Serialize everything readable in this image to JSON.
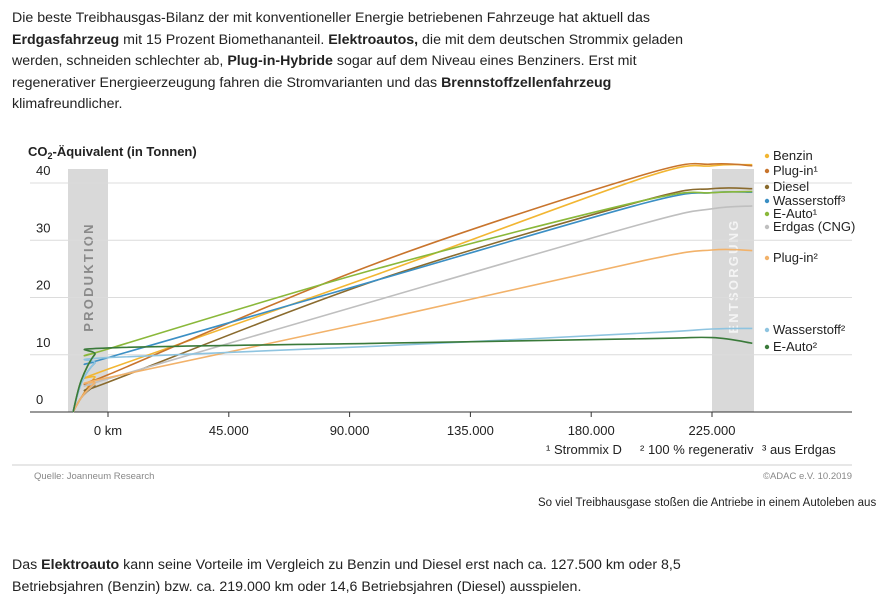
{
  "intro": {
    "p1": "Die beste Treibhausgas-Bilanz der mit konventioneller Energie betriebenen Fahrzeuge hat aktuell das ",
    "b1": "Erdgasfahrzeug",
    "p2": " mit 15 Prozent Biomethananteil. ",
    "b2": "Elektroautos,",
    "p3": " die mit dem deutschen Strommix geladen werden, schneiden schlechter ab, ",
    "b3": "Plug-in-Hybride",
    "p4": " sogar auf dem Niveau eines Benziners. Erst mit regenerativer Energieerzeugung fahren die Stromvarianten und das ",
    "b4": "Brennstoffzellenfahrzeug",
    "p5": " klimafreundlicher."
  },
  "chart_data": {
    "type": "line",
    "ylabel_prefix": "CO",
    "ylabel_sub": "2",
    "ylabel_suffix": "-Äquivalent (in Tonnen)",
    "ylim": [
      0,
      45
    ],
    "yticks": [
      "0",
      "10",
      "20",
      "30",
      "40"
    ],
    "xlim": [
      -25000,
      260000
    ],
    "xticks": [
      {
        "value": 0,
        "label": "0 km"
      },
      {
        "value": 45000,
        "label": "45.000"
      },
      {
        "value": 90000,
        "label": "90.000"
      },
      {
        "value": 135000,
        "label": "135.000"
      },
      {
        "value": 180000,
        "label": "180.000"
      },
      {
        "value": 225000,
        "label": "225.000"
      }
    ],
    "band_production": "PRODUKTION",
    "band_disposal": "ENTSORGUNG",
    "grid": true,
    "series": [
      {
        "name": "Benzin",
        "color": "#f2b632",
        "points": [
          [
            -13000,
            0
          ],
          [
            -10000,
            2.5
          ],
          [
            -5000,
            6.0
          ],
          [
            0,
            7.5
          ],
          [
            100000,
            24.0
          ],
          [
            200000,
            41.0
          ],
          [
            225000,
            43.0
          ],
          [
            240000,
            43.2
          ]
        ]
      },
      {
        "name": "Plug-in¹",
        "color": "#c8742c",
        "points": [
          [
            -13000,
            0
          ],
          [
            -10000,
            2.5
          ],
          [
            -5000,
            5.5
          ],
          [
            0,
            6.5
          ],
          [
            100000,
            26.0
          ],
          [
            200000,
            41.5
          ],
          [
            225000,
            43.3
          ],
          [
            240000,
            43.0
          ]
        ]
      },
      {
        "name": "Diesel",
        "color": "#8a6b2e",
        "points": [
          [
            -13000,
            0
          ],
          [
            -10000,
            2.5
          ],
          [
            -5000,
            4.5
          ],
          [
            0,
            5.2
          ],
          [
            100000,
            23.0
          ],
          [
            200000,
            37.0
          ],
          [
            225000,
            39.0
          ],
          [
            240000,
            39.0
          ]
        ]
      },
      {
        "name": "Wasserstoff³",
        "color": "#3b8fc4",
        "points": [
          [
            -13000,
            0
          ],
          [
            -10000,
            5.0
          ],
          [
            -5000,
            8.5
          ],
          [
            0,
            9.5
          ],
          [
            100000,
            23.0
          ],
          [
            200000,
            36.5
          ],
          [
            225000,
            38.3
          ],
          [
            240000,
            38.4
          ]
        ]
      },
      {
        "name": "E-Auto¹",
        "color": "#8ab83a",
        "points": [
          [
            -13000,
            0
          ],
          [
            -10000,
            5.5
          ],
          [
            -5000,
            10.0
          ],
          [
            0,
            11.0
          ],
          [
            100000,
            25.0
          ],
          [
            200000,
            37.0
          ],
          [
            225000,
            38.3
          ],
          [
            240000,
            38.5
          ]
        ]
      },
      {
        "name": "Erdgas (CNG)",
        "color": "#bfbfbf",
        "points": [
          [
            -13000,
            0
          ],
          [
            -10000,
            2.5
          ],
          [
            -5000,
            4.8
          ],
          [
            0,
            5.8
          ],
          [
            100000,
            19.5
          ],
          [
            200000,
            33.0
          ],
          [
            225000,
            35.5
          ],
          [
            240000,
            36.0
          ]
        ]
      },
      {
        "name": "Plug-in²",
        "color": "#f2b26a",
        "points": [
          [
            -13000,
            0
          ],
          [
            -10000,
            2.5
          ],
          [
            -5000,
            5.0
          ],
          [
            0,
            6.0
          ],
          [
            100000,
            16.0
          ],
          [
            200000,
            26.5
          ],
          [
            225000,
            28.3
          ],
          [
            240000,
            28.2
          ]
        ]
      },
      {
        "name": "Wasserstoff²",
        "color": "#8ec4e0",
        "points": [
          [
            -13000,
            0
          ],
          [
            -10000,
            5.0
          ],
          [
            -5000,
            8.5
          ],
          [
            0,
            9.5
          ],
          [
            100000,
            11.5
          ],
          [
            200000,
            13.8
          ],
          [
            225000,
            14.5
          ],
          [
            240000,
            14.6
          ]
        ]
      },
      {
        "name": "E-Auto²",
        "color": "#3a7a3a",
        "points": [
          [
            -13000,
            0
          ],
          [
            -10000,
            5.5
          ],
          [
            -5000,
            10.0
          ],
          [
            0,
            11.2
          ],
          [
            100000,
            12.0
          ],
          [
            200000,
            12.8
          ],
          [
            225000,
            13.0
          ],
          [
            240000,
            12.0
          ]
        ]
      }
    ],
    "legend_labels": [
      {
        "text": "Benzin",
        "color": "#f2b632"
      },
      {
        "text": "Plug-in¹",
        "color": "#c8742c"
      },
      {
        "text": "Diesel",
        "color": "#8a6b2e"
      },
      {
        "text": "Wasserstoff³",
        "color": "#3b8fc4"
      },
      {
        "text": "E-Auto¹",
        "color": "#8ab83a"
      },
      {
        "text": "Erdgas (CNG)",
        "color": "#bfbfbf"
      },
      {
        "text": "Plug-in²",
        "color": "#f2b26a"
      },
      {
        "text": "Wasserstoff²",
        "color": "#8ec4e0"
      },
      {
        "text": "E-Auto²",
        "color": "#3a7a3a"
      }
    ],
    "footnotes": [
      "¹ Strommix D",
      "² 100 % regenerativ",
      "³ aus Erdgas"
    ],
    "source": "Quelle:  Joanneum Research",
    "copyright": "©ADAC e.V.  10.2019"
  },
  "caption": "So viel Treibhausgase stoßen die Antriebe in einem Autoleben aus",
  "outro": {
    "p1": "Das ",
    "b1": "Elektroauto",
    "p2": " kann seine Vorteile im Vergleich zu Benzin und Diesel erst nach ca. 127.500 km oder 8,5 Betriebsjahren (Benzin) bzw. ca. 219.000 km oder 14,6 Betriebsjahren (Diesel) ausspielen."
  }
}
